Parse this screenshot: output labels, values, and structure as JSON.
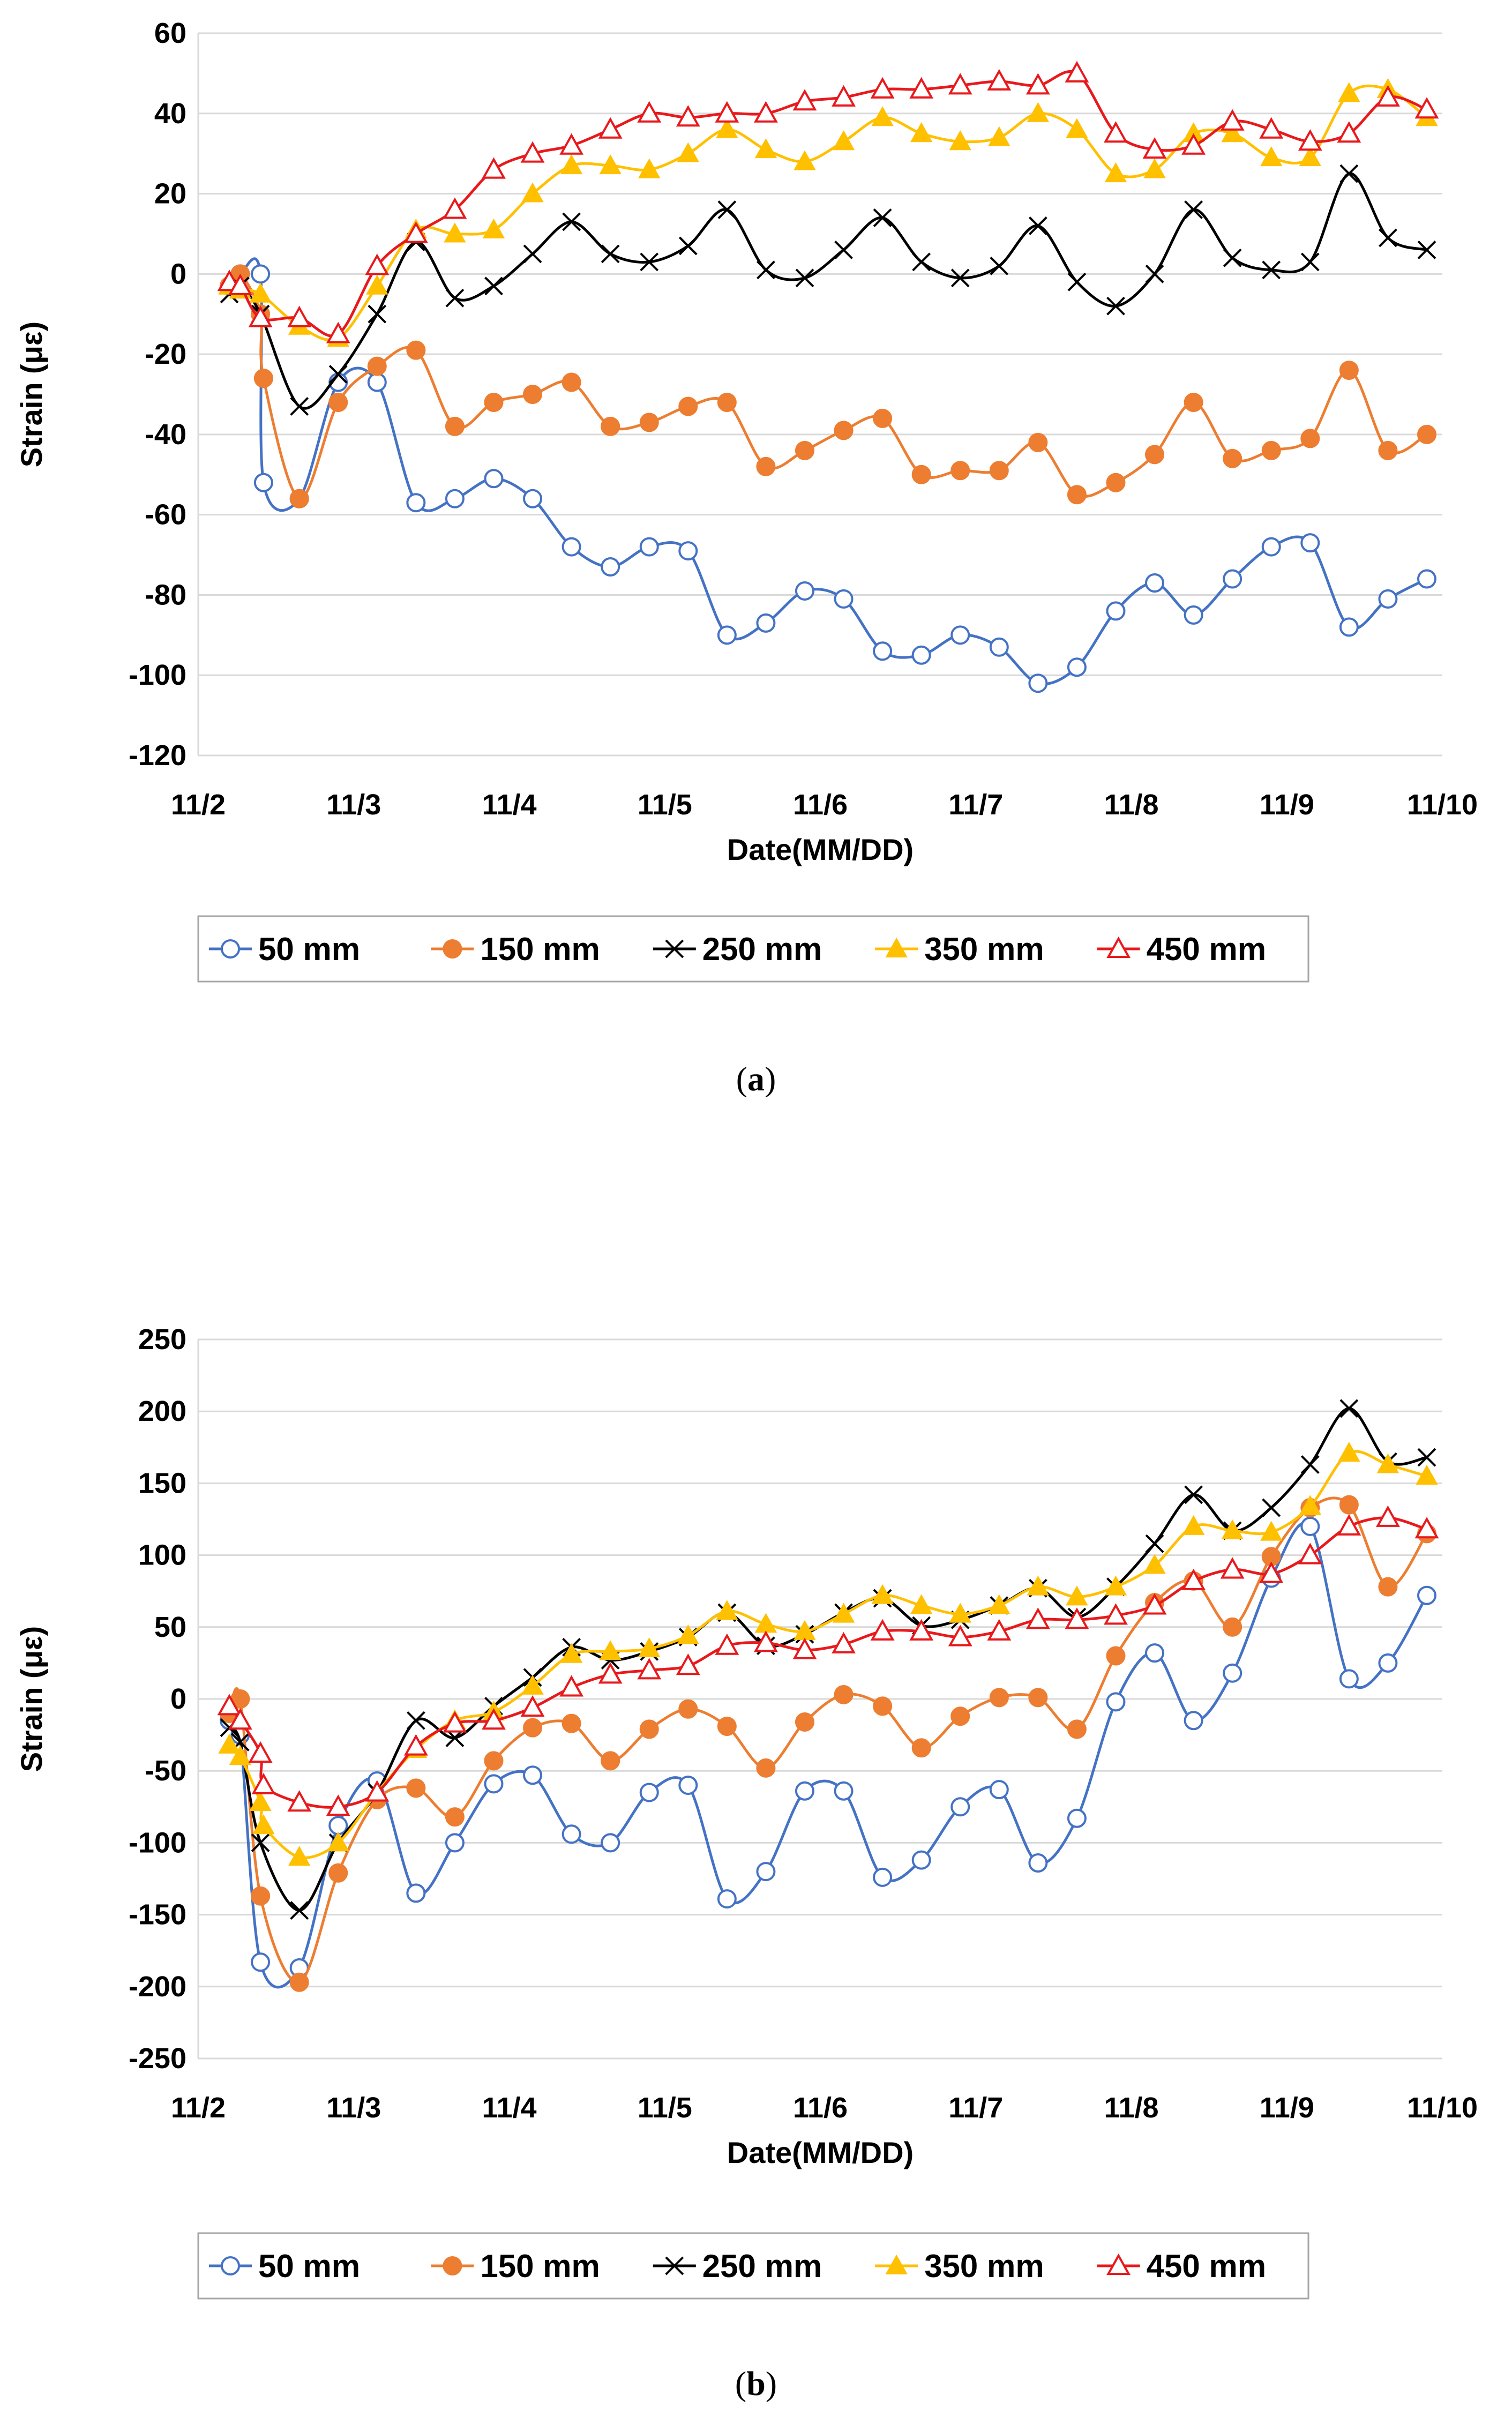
{
  "chart_data": [
    {
      "id": "a",
      "type": "line",
      "caption": "a",
      "xlabel": "Date(MM/DD)",
      "ylabel": "Strain (με)",
      "xlim": [
        0,
        8
      ],
      "ylim": [
        -120,
        60
      ],
      "yticks": [
        60,
        40,
        20,
        0,
        -20,
        -40,
        -60,
        -80,
        -100,
        -120
      ],
      "xticks": [
        "11/2",
        "11/3",
        "11/4",
        "11/5",
        "11/6",
        "11/7",
        "11/8",
        "11/9",
        "11/10"
      ],
      "grid": "horizontal",
      "legend": "bottom",
      "series": [
        {
          "name": "50 mm",
          "color": "#4472c4",
          "marker": "circle-open",
          "x": [
            0.2,
            0.27,
            0.4,
            0.42,
            0.65,
            0.9,
            1.15,
            1.4,
            1.65,
            1.9,
            2.15,
            2.4,
            2.65,
            2.9,
            3.15,
            3.4,
            3.65,
            3.9,
            4.15,
            4.4,
            4.65,
            4.9,
            5.15,
            5.4,
            5.65,
            5.9,
            6.15,
            6.4,
            6.65,
            6.9,
            7.15,
            7.4,
            7.65,
            7.9
          ],
          "y": [
            -3,
            0,
            0,
            -52,
            -56,
            -27,
            -27,
            -57,
            -56,
            -51,
            -56,
            -68,
            -73,
            -68,
            -69,
            -90,
            -87,
            -79,
            -81,
            -94,
            -95,
            -90,
            -93,
            -102,
            -98,
            -84,
            -77,
            -85,
            -76,
            -68,
            -67,
            -88,
            -81,
            -76
          ]
        },
        {
          "name": "150 mm",
          "color": "#ed7d31",
          "marker": "circle-filled",
          "x": [
            0.2,
            0.27,
            0.4,
            0.42,
            0.65,
            0.9,
            1.15,
            1.4,
            1.65,
            1.9,
            2.15,
            2.4,
            2.65,
            2.9,
            3.15,
            3.4,
            3.65,
            3.9,
            4.15,
            4.4,
            4.65,
            4.9,
            5.15,
            5.4,
            5.65,
            5.9,
            6.15,
            6.4,
            6.65,
            6.9,
            7.15,
            7.4,
            7.65,
            7.9
          ],
          "y": [
            -3,
            0,
            -10,
            -26,
            -56,
            -32,
            -23,
            -19,
            -38,
            -32,
            -30,
            -27,
            -38,
            -37,
            -33,
            -32,
            -48,
            -44,
            -39,
            -36,
            -50,
            -49,
            -49,
            -42,
            -55,
            -52,
            -45,
            -32,
            -46,
            -44,
            -41,
            -24,
            -44,
            -40
          ]
        },
        {
          "name": "250 mm",
          "color": "#000000",
          "marker": "x",
          "x": [
            0.2,
            0.27,
            0.4,
            0.65,
            0.9,
            1.15,
            1.4,
            1.65,
            1.9,
            2.15,
            2.4,
            2.65,
            2.9,
            3.15,
            3.4,
            3.65,
            3.9,
            4.15,
            4.4,
            4.65,
            4.9,
            5.15,
            5.4,
            5.65,
            5.9,
            6.15,
            6.4,
            6.65,
            6.9,
            7.15,
            7.4,
            7.65,
            7.9
          ],
          "y": [
            -5,
            -3,
            -10,
            -33,
            -25,
            -10,
            8,
            -6,
            -3,
            5,
            13,
            5,
            3,
            7,
            16,
            1,
            -1,
            6,
            14,
            3,
            -1,
            2,
            12,
            -2,
            -8,
            0,
            16,
            4,
            1,
            3,
            25,
            9,
            6
          ]
        },
        {
          "name": "350 mm",
          "color": "#ffc000",
          "marker": "triangle-filled",
          "x": [
            0.2,
            0.27,
            0.4,
            0.65,
            0.9,
            1.15,
            1.4,
            1.65,
            1.9,
            2.15,
            2.4,
            2.65,
            2.9,
            3.15,
            3.4,
            3.65,
            3.9,
            4.15,
            4.4,
            4.65,
            4.9,
            5.15,
            5.4,
            5.65,
            5.9,
            6.15,
            6.4,
            6.65,
            6.9,
            7.15,
            7.4,
            7.65,
            7.9
          ],
          "y": [
            -3,
            -4,
            -5,
            -13,
            -16,
            -3,
            11,
            10,
            11,
            20,
            27,
            27,
            26,
            30,
            36,
            31,
            28,
            33,
            39,
            35,
            33,
            34,
            40,
            36,
            25,
            26,
            35,
            35,
            29,
            29,
            45,
            46,
            39
          ]
        },
        {
          "name": "450 mm",
          "color": "#e8191c",
          "marker": "triangle-open",
          "x": [
            0.2,
            0.27,
            0.4,
            0.65,
            0.9,
            1.15,
            1.4,
            1.65,
            1.9,
            2.15,
            2.4,
            2.65,
            2.9,
            3.15,
            3.4,
            3.65,
            3.9,
            4.15,
            4.4,
            4.65,
            4.9,
            5.15,
            5.4,
            5.65,
            5.9,
            6.15,
            6.4,
            6.65,
            6.9,
            7.15,
            7.4,
            7.65,
            7.9
          ],
          "y": [
            -2,
            -3,
            -11,
            -11,
            -15,
            2,
            10,
            16,
            26,
            30,
            32,
            36,
            40,
            39,
            40,
            40,
            43,
            44,
            46,
            46,
            47,
            48,
            47,
            50,
            35,
            31,
            32,
            38,
            36,
            33,
            35,
            44,
            41
          ]
        }
      ]
    },
    {
      "id": "b",
      "type": "line",
      "caption": "b",
      "xlabel": "Date(MM/DD)",
      "ylabel": "Strain (με)",
      "xlim": [
        0,
        8
      ],
      "ylim": [
        -250,
        250
      ],
      "yticks": [
        250,
        200,
        150,
        100,
        50,
        0,
        -50,
        -100,
        -150,
        -200,
        -250
      ],
      "xticks": [
        "11/2",
        "11/3",
        "11/4",
        "11/5",
        "11/6",
        "11/7",
        "11/8",
        "11/9",
        "11/10"
      ],
      "grid": "horizontal",
      "legend": "bottom",
      "series": [
        {
          "name": "50 mm",
          "color": "#4472c4",
          "marker": "circle-open",
          "x": [
            0.2,
            0.27,
            0.4,
            0.65,
            0.9,
            1.15,
            1.4,
            1.65,
            1.9,
            2.15,
            2.4,
            2.65,
            2.9,
            3.15,
            3.4,
            3.65,
            3.9,
            4.15,
            4.4,
            4.65,
            4.9,
            5.15,
            5.4,
            5.65,
            5.9,
            6.15,
            6.4,
            6.65,
            6.9,
            7.15,
            7.4,
            7.65,
            7.9
          ],
          "y": [
            -15,
            -25,
            -183,
            -187,
            -88,
            -57,
            -135,
            -100,
            -59,
            -53,
            -94,
            -100,
            -65,
            -60,
            -139,
            -120,
            -64,
            -64,
            -124,
            -112,
            -75,
            -63,
            -114,
            -83,
            -2,
            32,
            -15,
            18,
            84,
            120,
            14,
            25,
            72
          ]
        },
        {
          "name": "150 mm",
          "color": "#ed7d31",
          "marker": "circle-filled",
          "x": [
            0.2,
            0.27,
            0.4,
            0.65,
            0.9,
            1.15,
            1.4,
            1.65,
            1.9,
            2.15,
            2.4,
            2.65,
            2.9,
            3.15,
            3.4,
            3.65,
            3.9,
            4.15,
            4.4,
            4.65,
            4.9,
            5.15,
            5.4,
            5.65,
            5.9,
            6.15,
            6.4,
            6.65,
            6.9,
            7.15,
            7.4,
            7.65,
            7.9
          ],
          "y": [
            -10,
            0,
            -137,
            -197,
            -121,
            -70,
            -62,
            -82,
            -43,
            -20,
            -17,
            -43,
            -21,
            -7,
            -19,
            -48,
            -16,
            3,
            -5,
            -34,
            -12,
            1,
            1,
            -21,
            30,
            67,
            82,
            50,
            99,
            133,
            135,
            78,
            115
          ]
        },
        {
          "name": "250 mm",
          "color": "#000000",
          "marker": "x",
          "x": [
            0.2,
            0.27,
            0.4,
            0.65,
            0.9,
            1.15,
            1.4,
            1.65,
            1.9,
            2.15,
            2.4,
            2.65,
            2.9,
            3.15,
            3.4,
            3.65,
            3.9,
            4.15,
            4.4,
            4.65,
            4.9,
            5.15,
            5.4,
            5.65,
            5.9,
            6.15,
            6.4,
            6.65,
            6.9,
            7.15,
            7.4,
            7.65,
            7.9
          ],
          "y": [
            -20,
            -30,
            -100,
            -147,
            -100,
            -65,
            -15,
            -27,
            -5,
            15,
            36,
            27,
            33,
            43,
            60,
            37,
            45,
            60,
            70,
            51,
            55,
            65,
            77,
            57,
            78,
            108,
            142,
            117,
            133,
            163,
            202,
            165,
            168
          ]
        },
        {
          "name": "350 mm",
          "color": "#ffc000",
          "marker": "triangle-filled",
          "x": [
            0.2,
            0.27,
            0.4,
            0.42,
            0.65,
            0.9,
            1.15,
            1.4,
            1.65,
            1.9,
            2.15,
            2.4,
            2.65,
            2.9,
            3.15,
            3.4,
            3.65,
            3.9,
            4.15,
            4.4,
            4.65,
            4.9,
            5.15,
            5.4,
            5.65,
            5.9,
            6.15,
            6.4,
            6.65,
            6.9,
            7.15,
            7.4,
            7.65,
            7.9
          ],
          "y": [
            -32,
            -40,
            -72,
            -88,
            -110,
            -100,
            -65,
            -35,
            -15,
            -9,
            9,
            31,
            33,
            35,
            44,
            61,
            52,
            47,
            59,
            72,
            65,
            59,
            65,
            78,
            71,
            78,
            93,
            120,
            117,
            116,
            134,
            171,
            163,
            155
          ]
        },
        {
          "name": "450 mm",
          "color": "#e8191c",
          "marker": "triangle-open",
          "x": [
            0.2,
            0.27,
            0.4,
            0.42,
            0.65,
            0.9,
            1.15,
            1.4,
            1.65,
            1.9,
            2.15,
            2.4,
            2.65,
            2.9,
            3.15,
            3.4,
            3.65,
            3.9,
            4.15,
            4.4,
            4.65,
            4.9,
            5.15,
            5.4,
            5.65,
            5.9,
            6.15,
            6.4,
            6.65,
            6.9,
            7.15,
            7.4,
            7.65,
            7.9
          ],
          "y": [
            -5,
            -15,
            -38,
            -60,
            -72,
            -75,
            -65,
            -33,
            -17,
            -15,
            -6,
            8,
            17,
            20,
            23,
            37,
            39,
            34,
            38,
            47,
            47,
            43,
            47,
            55,
            55,
            58,
            65,
            82,
            90,
            87,
            100,
            120,
            126,
            118
          ]
        }
      ]
    }
  ]
}
